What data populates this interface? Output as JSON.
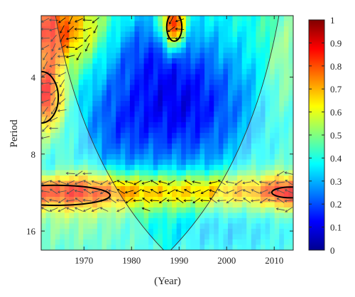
{
  "chart_data": {
    "type": "heatmap",
    "title": "",
    "xlabel": "(Year)",
    "ylabel": "Period",
    "xlim": [
      1961,
      2014
    ],
    "x_ticks": [
      "1970",
      "1980",
      "1990",
      "2000",
      "2010"
    ],
    "x_tick_values": [
      1970,
      1980,
      1990,
      2000,
      2010
    ],
    "ylim": [
      2.3,
      19
    ],
    "y_scale": "log2",
    "y_ticks": [
      "4",
      "8",
      "16"
    ],
    "y_tick_values": [
      4,
      8,
      16
    ],
    "colorbar": {
      "range": [
        0,
        1
      ],
      "ticks": [
        "0",
        "0.1",
        "0.2",
        "0.3",
        "0.4",
        "0.5",
        "0.6",
        "0.7",
        "0.8",
        "0.9",
        "1"
      ],
      "tick_values": [
        0,
        0.1,
        0.2,
        0.3,
        0.4,
        0.5,
        0.6,
        0.7,
        0.8,
        0.9,
        1
      ],
      "colormap": "jet"
    },
    "regions": [
      {
        "name": "high-coherence-top-left",
        "year": [
          1961,
          1977
        ],
        "period": [
          2.3,
          3.6
        ],
        "level": 0.72
      },
      {
        "name": "high-coherence-top-1989",
        "year": [
          1987,
          1991
        ],
        "period": [
          2.3,
          3.0
        ],
        "level": 0.93
      },
      {
        "name": "high-coherence-left-4-6",
        "year": [
          1961,
          1965
        ],
        "period": [
          3.9,
          6.3
        ],
        "level": 0.78
      },
      {
        "name": "high-coherence-band-11-12",
        "year": [
          1961,
          2014
        ],
        "period": [
          9.6,
          12.8
        ],
        "level": 0.7
      },
      {
        "name": "high-coherence-band-right",
        "year": [
          2009,
          2014
        ],
        "period": [
          10.5,
          12.5
        ],
        "level": 0.78
      },
      {
        "name": "low-coherence-center",
        "year": [
          1967,
          2010
        ],
        "period": [
          3.0,
          9.0
        ],
        "level": 0.15
      }
    ],
    "cone_of_influence": {
      "apex_year": 1987.5,
      "left_top_year": 1964,
      "right_top_year": 2011
    }
  }
}
